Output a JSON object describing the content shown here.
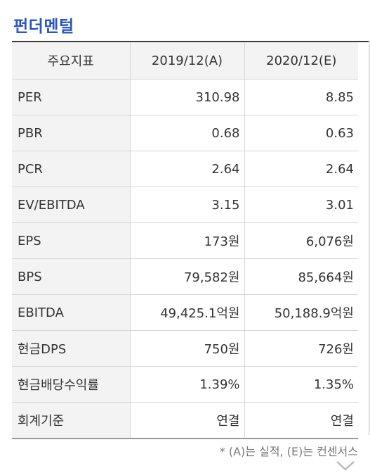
{
  "section_title": "펀더멘털",
  "table": {
    "headers": [
      "주요지표",
      "2019/12(A)",
      "2020/12(E)"
    ],
    "rows": [
      {
        "label": "PER",
        "a": "310.98",
        "e": "8.85"
      },
      {
        "label": "PBR",
        "a": "0.68",
        "e": "0.63"
      },
      {
        "label": "PCR",
        "a": "2.64",
        "e": "2.64"
      },
      {
        "label": "EV/EBITDA",
        "a": "3.15",
        "e": "3.01"
      },
      {
        "label": "EPS",
        "a": "173원",
        "e": "6,076원"
      },
      {
        "label": "BPS",
        "a": "79,582원",
        "e": "85,664원"
      },
      {
        "label": "EBITDA",
        "a": "49,425.1억원",
        "e": "50,188.9억원"
      },
      {
        "label": "현금DPS",
        "a": "750원",
        "e": "726원"
      },
      {
        "label": "현금배당수익률",
        "a": "1.39%",
        "e": "1.35%"
      },
      {
        "label": "회계기준",
        "a": "연결",
        "e": "연결"
      }
    ]
  },
  "footnote": "* (A)는 실적, (E)는 컨센서스",
  "icons": {
    "expand": "chevron-down-icon"
  }
}
